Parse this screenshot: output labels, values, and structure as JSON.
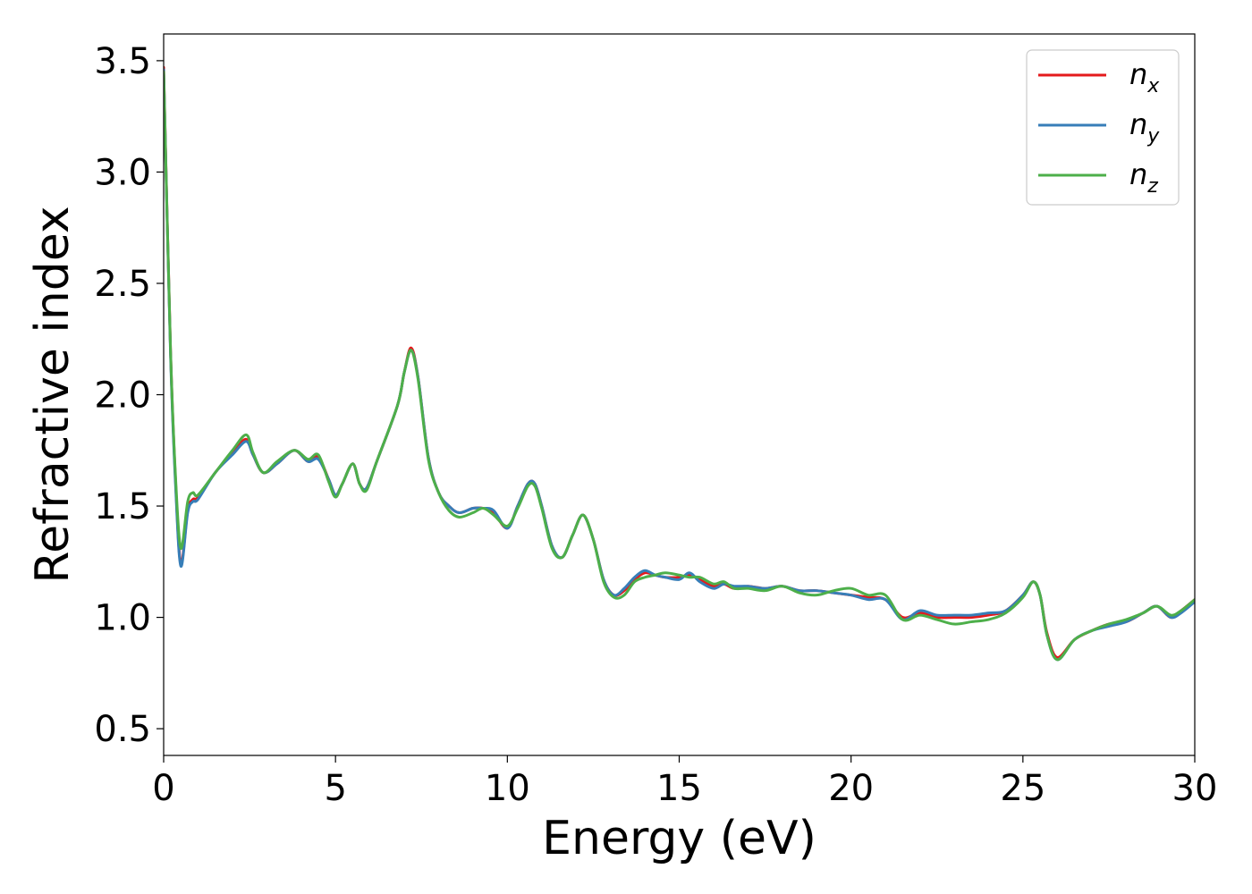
{
  "chart_data": {
    "type": "line",
    "xlabel": "Energy (eV)",
    "ylabel": "Refractive index",
    "xlim": [
      0,
      30
    ],
    "ylim": [
      0.38,
      3.62
    ],
    "xticks": [
      0,
      5,
      10,
      15,
      20,
      25,
      30
    ],
    "xtick_labels": [
      "0",
      "5",
      "10",
      "15",
      "20",
      "25",
      "30"
    ],
    "yticks": [
      0.5,
      1.0,
      1.5,
      2.0,
      2.5,
      3.0,
      3.5
    ],
    "ytick_labels": [
      "0.5",
      "1.0",
      "1.5",
      "2.0",
      "2.5",
      "3.0",
      "3.5"
    ],
    "grid": false,
    "legend_position": "top-right",
    "series": [
      {
        "name": "n",
        "subscript": "x",
        "color": "#e41a1c",
        "x": [
          0.0,
          0.2,
          0.35,
          0.5,
          0.7,
          0.85,
          1.0,
          1.5,
          2.0,
          2.4,
          2.6,
          2.9,
          3.3,
          3.8,
          4.2,
          4.5,
          4.8,
          5.0,
          5.2,
          5.5,
          5.7,
          5.9,
          6.2,
          6.8,
          7.0,
          7.2,
          7.4,
          7.7,
          8.0,
          8.3,
          8.6,
          9.0,
          9.3,
          9.6,
          10.0,
          10.3,
          10.6,
          10.8,
          11.0,
          11.3,
          11.6,
          11.9,
          12.2,
          12.5,
          12.8,
          13.1,
          13.4,
          13.7,
          14.0,
          14.3,
          14.6,
          15.0,
          15.3,
          15.6,
          16.0,
          16.3,
          16.6,
          17.0,
          17.5,
          18.0,
          18.5,
          19.0,
          19.5,
          20.0,
          20.5,
          21.0,
          21.5,
          22.0,
          22.5,
          23.0,
          23.5,
          24.0,
          24.5,
          25.0,
          25.3,
          25.5,
          25.7,
          26.0,
          26.5,
          27.0,
          27.5,
          28.0,
          28.5,
          28.9,
          29.3,
          29.6,
          30.0
        ],
        "values": [
          3.47,
          2.2,
          1.6,
          1.24,
          1.48,
          1.53,
          1.54,
          1.65,
          1.74,
          1.8,
          1.73,
          1.65,
          1.69,
          1.75,
          1.7,
          1.72,
          1.62,
          1.55,
          1.6,
          1.69,
          1.6,
          1.58,
          1.7,
          1.95,
          2.1,
          2.21,
          2.08,
          1.72,
          1.56,
          1.5,
          1.47,
          1.49,
          1.49,
          1.47,
          1.4,
          1.5,
          1.6,
          1.6,
          1.5,
          1.32,
          1.27,
          1.37,
          1.46,
          1.35,
          1.17,
          1.1,
          1.12,
          1.17,
          1.2,
          1.19,
          1.18,
          1.18,
          1.19,
          1.17,
          1.14,
          1.15,
          1.13,
          1.14,
          1.13,
          1.14,
          1.12,
          1.12,
          1.11,
          1.1,
          1.09,
          1.08,
          1.0,
          1.02,
          1.0,
          1.0,
          1.0,
          1.01,
          1.03,
          1.1,
          1.16,
          1.1,
          0.93,
          0.82,
          0.9,
          0.94,
          0.97,
          0.98,
          1.02,
          1.05,
          1.0,
          1.03,
          1.08
        ]
      },
      {
        "name": "n",
        "subscript": "y",
        "color": "#377eb8",
        "x": [
          0.0,
          0.2,
          0.35,
          0.5,
          0.7,
          0.85,
          1.0,
          1.5,
          2.0,
          2.4,
          2.6,
          2.9,
          3.3,
          3.8,
          4.2,
          4.5,
          4.8,
          5.0,
          5.2,
          5.5,
          5.7,
          5.9,
          6.2,
          6.8,
          7.0,
          7.2,
          7.4,
          7.7,
          8.0,
          8.3,
          8.6,
          9.0,
          9.3,
          9.6,
          10.0,
          10.3,
          10.6,
          10.8,
          11.0,
          11.3,
          11.6,
          11.9,
          12.2,
          12.5,
          12.8,
          13.1,
          13.4,
          13.7,
          14.0,
          14.3,
          14.6,
          15.0,
          15.3,
          15.6,
          16.0,
          16.3,
          16.6,
          17.0,
          17.5,
          18.0,
          18.5,
          19.0,
          19.5,
          20.0,
          20.5,
          21.0,
          21.5,
          22.0,
          22.5,
          23.0,
          23.5,
          24.0,
          24.5,
          25.0,
          25.3,
          25.5,
          25.7,
          26.0,
          26.5,
          27.0,
          27.5,
          28.0,
          28.5,
          28.9,
          29.3,
          29.6,
          30.0
        ],
        "values": [
          3.46,
          2.18,
          1.58,
          1.23,
          1.47,
          1.52,
          1.53,
          1.65,
          1.73,
          1.79,
          1.73,
          1.65,
          1.69,
          1.75,
          1.7,
          1.71,
          1.62,
          1.55,
          1.6,
          1.69,
          1.6,
          1.58,
          1.7,
          1.95,
          2.1,
          2.2,
          2.08,
          1.72,
          1.56,
          1.5,
          1.47,
          1.49,
          1.49,
          1.48,
          1.4,
          1.5,
          1.6,
          1.6,
          1.5,
          1.32,
          1.27,
          1.37,
          1.46,
          1.35,
          1.17,
          1.1,
          1.13,
          1.18,
          1.21,
          1.19,
          1.18,
          1.17,
          1.2,
          1.16,
          1.13,
          1.15,
          1.14,
          1.14,
          1.13,
          1.14,
          1.12,
          1.12,
          1.11,
          1.1,
          1.08,
          1.08,
          0.99,
          1.03,
          1.01,
          1.01,
          1.01,
          1.02,
          1.03,
          1.1,
          1.16,
          1.1,
          0.92,
          0.81,
          0.9,
          0.94,
          0.96,
          0.98,
          1.02,
          1.05,
          1.0,
          1.02,
          1.07
        ]
      },
      {
        "name": "n",
        "subscript": "z",
        "color": "#4daf4a",
        "x": [
          0.0,
          0.2,
          0.35,
          0.5,
          0.7,
          0.85,
          1.0,
          1.5,
          2.0,
          2.4,
          2.6,
          2.9,
          3.3,
          3.8,
          4.2,
          4.5,
          4.8,
          5.0,
          5.2,
          5.5,
          5.7,
          5.9,
          6.2,
          6.8,
          7.0,
          7.2,
          7.4,
          7.7,
          8.0,
          8.3,
          8.6,
          9.0,
          9.3,
          9.6,
          10.0,
          10.3,
          10.6,
          10.8,
          11.0,
          11.3,
          11.6,
          11.9,
          12.2,
          12.5,
          12.8,
          13.1,
          13.4,
          13.7,
          14.0,
          14.3,
          14.6,
          15.0,
          15.3,
          15.6,
          16.0,
          16.3,
          16.6,
          17.0,
          17.5,
          18.0,
          18.5,
          19.0,
          19.5,
          20.0,
          20.5,
          21.0,
          21.5,
          22.0,
          22.5,
          23.0,
          23.5,
          24.0,
          24.5,
          25.0,
          25.3,
          25.5,
          25.7,
          26.0,
          26.5,
          27.0,
          27.5,
          28.0,
          28.5,
          28.9,
          29.3,
          29.6,
          30.0
        ],
        "values": [
          3.45,
          2.2,
          1.62,
          1.31,
          1.52,
          1.56,
          1.55,
          1.65,
          1.75,
          1.82,
          1.74,
          1.65,
          1.7,
          1.75,
          1.71,
          1.73,
          1.61,
          1.54,
          1.6,
          1.69,
          1.6,
          1.57,
          1.7,
          1.95,
          2.1,
          2.2,
          2.07,
          1.71,
          1.56,
          1.48,
          1.45,
          1.47,
          1.49,
          1.46,
          1.41,
          1.49,
          1.59,
          1.59,
          1.49,
          1.31,
          1.27,
          1.37,
          1.46,
          1.35,
          1.16,
          1.09,
          1.1,
          1.16,
          1.18,
          1.19,
          1.2,
          1.19,
          1.18,
          1.18,
          1.15,
          1.16,
          1.13,
          1.13,
          1.12,
          1.14,
          1.11,
          1.1,
          1.12,
          1.13,
          1.1,
          1.1,
          0.99,
          1.01,
          0.99,
          0.97,
          0.98,
          0.99,
          1.02,
          1.09,
          1.16,
          1.1,
          0.92,
          0.81,
          0.9,
          0.94,
          0.97,
          0.99,
          1.02,
          1.05,
          1.01,
          1.03,
          1.08
        ]
      }
    ]
  }
}
